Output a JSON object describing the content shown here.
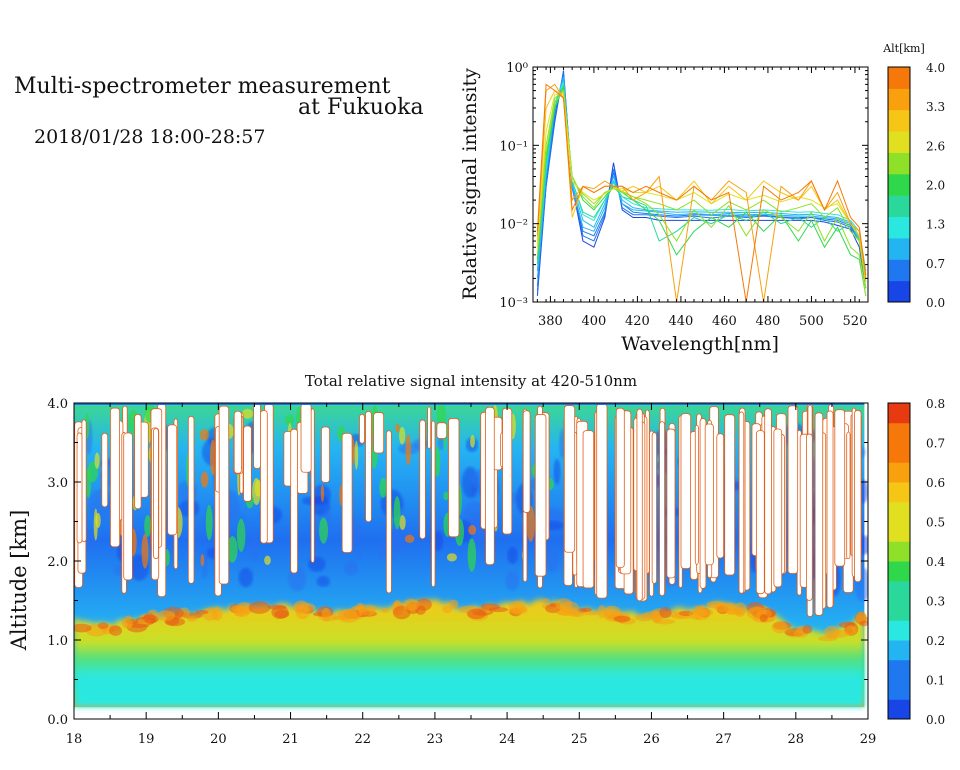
{
  "header": {
    "title_line1": "Multi-spectrometer measurement",
    "title_line2": "at Fukuoka",
    "subtitle": "2018/01/28 18:00-28:57"
  },
  "colors": {
    "altitude_scale": [
      "#1846e6",
      "#1f78f0",
      "#25b4f2",
      "#2ae8e0",
      "#29d89a",
      "#2fd84a",
      "#8ee028",
      "#e0e020",
      "#f6c616",
      "#f8a00e",
      "#f6780a"
    ],
    "intensity_scale": [
      "#1846e6",
      "#1f78f0",
      "#25b4f2",
      "#2ae8e0",
      "#29d89a",
      "#2fd84a",
      "#8ee028",
      "#e0e020",
      "#f6c616",
      "#f8a00e",
      "#f6780a",
      "#e83a10"
    ]
  },
  "chart_data": [
    {
      "type": "line",
      "xlabel": "Wavelength[nm]",
      "ylabel": "Relative signal intensity",
      "xlim": [
        372,
        526
      ],
      "ylim": [
        0.001,
        1
      ],
      "yscale": "log",
      "x_ticks": [
        380,
        400,
        420,
        440,
        460,
        480,
        500,
        520
      ],
      "y_ticks": [
        {
          "value": 1,
          "label": "10⁰"
        },
        {
          "value": 0.1,
          "label": "10⁻¹"
        },
        {
          "value": 0.01,
          "label": "10⁻²"
        },
        {
          "value": 0.001,
          "label": "10⁻³"
        }
      ],
      "colorbar": {
        "label": "Alt[km]",
        "range": [
          0,
          4
        ],
        "tick_labels": [
          "4.0",
          "3.3",
          "2.6",
          "2.0",
          "1.3",
          "0.7",
          "0.0"
        ]
      },
      "x": [
        374,
        378,
        382,
        386,
        390,
        395,
        400,
        405,
        409,
        413,
        418,
        424,
        430,
        438,
        446,
        454,
        462,
        470,
        478,
        486,
        494,
        500,
        506,
        512,
        518,
        522,
        525
      ],
      "series": [
        {
          "alt": 0.0,
          "values": [
            0.0012,
            0.03,
            0.2,
            0.9,
            0.03,
            0.006,
            0.005,
            0.012,
            0.06,
            0.015,
            0.012,
            0.012,
            0.011,
            0.011,
            0.011,
            0.011,
            0.011,
            0.011,
            0.011,
            0.011,
            0.011,
            0.011,
            0.0105,
            0.0095,
            0.0085,
            0.005,
            0.0015
          ]
        },
        {
          "alt": 0.2,
          "values": [
            0.0014,
            0.035,
            0.25,
            0.85,
            0.03,
            0.007,
            0.006,
            0.013,
            0.05,
            0.016,
            0.013,
            0.013,
            0.0125,
            0.012,
            0.0125,
            0.0118,
            0.0125,
            0.012,
            0.0125,
            0.012,
            0.0115,
            0.012,
            0.011,
            0.0105,
            0.009,
            0.006,
            0.0018
          ]
        },
        {
          "alt": 0.4,
          "values": [
            0.0016,
            0.03,
            0.22,
            0.8,
            0.028,
            0.008,
            0.007,
            0.014,
            0.045,
            0.018,
            0.014,
            0.0135,
            0.013,
            0.0125,
            0.013,
            0.0128,
            0.0128,
            0.0125,
            0.0128,
            0.0122,
            0.012,
            0.012,
            0.0115,
            0.011,
            0.0095,
            0.006,
            0.002
          ]
        },
        {
          "alt": 0.6,
          "values": [
            0.002,
            0.04,
            0.3,
            0.75,
            0.03,
            0.009,
            0.008,
            0.016,
            0.04,
            0.018,
            0.015,
            0.0145,
            0.014,
            0.013,
            0.0135,
            0.013,
            0.0135,
            0.013,
            0.0132,
            0.0128,
            0.0125,
            0.0125,
            0.012,
            0.0115,
            0.01,
            0.0065,
            0.002
          ]
        },
        {
          "alt": 0.9,
          "values": [
            0.0025,
            0.05,
            0.3,
            0.7,
            0.032,
            0.011,
            0.009,
            0.018,
            0.035,
            0.02,
            0.016,
            0.015,
            0.0145,
            0.014,
            0.0142,
            0.014,
            0.014,
            0.0138,
            0.014,
            0.0135,
            0.013,
            0.0132,
            0.0125,
            0.012,
            0.0105,
            0.007,
            0.0022
          ]
        },
        {
          "alt": 1.3,
          "values": [
            0.003,
            0.05,
            0.35,
            0.65,
            0.035,
            0.013,
            0.011,
            0.02,
            0.033,
            0.022,
            0.018,
            0.016,
            0.0155,
            0.015,
            0.015,
            0.0148,
            0.0152,
            0.0145,
            0.015,
            0.0145,
            0.014,
            0.0142,
            0.0135,
            0.013,
            0.011,
            0.008,
            0.0025
          ]
        },
        {
          "alt": 1.6,
          "values": [
            0.003,
            0.06,
            0.3,
            0.6,
            0.035,
            0.014,
            0.012,
            0.02,
            0.03,
            0.022,
            0.02,
            0.017,
            0.006,
            0.008,
            0.012,
            0.01,
            0.013,
            0.011,
            0.014,
            0.01,
            0.012,
            0.009,
            0.012,
            0.008,
            0.01,
            0.006,
            0.002
          ]
        },
        {
          "alt": 1.9,
          "values": [
            0.0035,
            0.07,
            0.3,
            0.55,
            0.04,
            0.02,
            0.015,
            0.022,
            0.03,
            0.025,
            0.02,
            0.015,
            0.011,
            0.004,
            0.008,
            0.012,
            0.009,
            0.014,
            0.008,
            0.013,
            0.006,
            0.011,
            0.005,
            0.009,
            0.004,
            0.0035,
            0.0012
          ]
        },
        {
          "alt": 2.2,
          "values": [
            0.004,
            0.08,
            0.35,
            0.5,
            0.04,
            0.022,
            0.016,
            0.025,
            0.028,
            0.025,
            0.022,
            0.018,
            0.013,
            0.006,
            0.015,
            0.009,
            0.017,
            0.007,
            0.015,
            0.012,
            0.008,
            0.014,
            0.006,
            0.012,
            0.005,
            0.004,
            0.0012
          ]
        },
        {
          "alt": 2.5,
          "values": [
            0.005,
            0.1,
            0.4,
            0.5,
            0.035,
            0.024,
            0.018,
            0.025,
            0.028,
            0.026,
            0.022,
            0.02,
            0.018,
            0.015,
            0.02,
            0.013,
            0.019,
            0.015,
            0.02,
            0.014,
            0.016,
            0.018,
            0.012,
            0.016,
            0.008,
            0.006,
            0.0015
          ]
        },
        {
          "alt": 2.8,
          "values": [
            0.005,
            0.15,
            0.45,
            0.45,
            0.035,
            0.025,
            0.02,
            0.024,
            0.028,
            0.028,
            0.025,
            0.025,
            0.023,
            0.02,
            0.025,
            0.018,
            0.024,
            0.02,
            0.023,
            0.019,
            0.022,
            0.02,
            0.016,
            0.018,
            0.01,
            0.007,
            0.0018
          ]
        },
        {
          "alt": 3.2,
          "values": [
            0.006,
            0.3,
            0.5,
            0.45,
            0.012,
            0.03,
            0.025,
            0.03,
            0.03,
            0.026,
            0.03,
            0.025,
            0.03,
            0.02,
            0.035,
            0.018,
            0.03,
            0.02,
            0.035,
            0.025,
            0.02,
            0.03,
            0.015,
            0.02,
            0.01,
            0.008,
            0.002
          ]
        },
        {
          "alt": 3.6,
          "values": [
            0.007,
            0.5,
            0.6,
            0.4,
            0.02,
            0.03,
            0.028,
            0.035,
            0.03,
            0.03,
            0.02,
            0.025,
            0.04,
            0.001,
            0.03,
            0.02,
            0.035,
            0.025,
            0.001,
            0.03,
            0.02,
            0.035,
            0.015,
            0.025,
            0.01,
            0.008,
            0.002
          ]
        },
        {
          "alt": 4.0,
          "values": [
            0.008,
            0.6,
            0.5,
            0.4,
            0.015,
            0.03,
            0.025,
            0.03,
            0.03,
            0.03,
            0.025,
            0.03,
            0.025,
            0.02,
            0.03,
            0.02,
            0.025,
            0.001,
            0.03,
            0.02,
            0.025,
            0.035,
            0.015,
            0.035,
            0.012,
            0.009,
            0.0022
          ]
        }
      ]
    },
    {
      "type": "heatmap",
      "title": "Total relative signal intensity at 420-510nm",
      "xlabel": "",
      "ylabel": "Altitude [km]",
      "xlim": [
        18,
        29
      ],
      "ylim": [
        0,
        4
      ],
      "x_ticks": [
        18,
        19,
        20,
        21,
        22,
        23,
        24,
        25,
        26,
        27,
        28,
        29
      ],
      "y_ticks": [
        "0.0",
        "1.0",
        "2.0",
        "3.0",
        "4.0"
      ],
      "data_xrange": [
        18.0,
        28.95
      ],
      "data_yrange": [
        0.15,
        4.0
      ],
      "colorbar": {
        "range": [
          0,
          0.8
        ],
        "tick_labels": [
          "0.8",
          "0.7",
          "0.6",
          "0.5",
          "0.4",
          "0.3",
          "0.2",
          "0.1",
          "0.0"
        ]
      },
      "cloud_base_km": [
        {
          "t": 18.0,
          "h": 1.25
        },
        {
          "t": 18.5,
          "h": 1.2
        },
        {
          "t": 19.0,
          "h": 1.3
        },
        {
          "t": 19.5,
          "h": 1.35
        },
        {
          "t": 20.0,
          "h": 1.4
        },
        {
          "t": 20.5,
          "h": 1.4
        },
        {
          "t": 21.0,
          "h": 1.45
        },
        {
          "t": 21.5,
          "h": 1.35
        },
        {
          "t": 22.0,
          "h": 1.4
        },
        {
          "t": 22.5,
          "h": 1.45
        },
        {
          "t": 23.0,
          "h": 1.5
        },
        {
          "t": 23.5,
          "h": 1.4
        },
        {
          "t": 24.0,
          "h": 1.45
        },
        {
          "t": 24.5,
          "h": 1.5
        },
        {
          "t": 25.0,
          "h": 1.4
        },
        {
          "t": 25.5,
          "h": 1.35
        },
        {
          "t": 26.0,
          "h": 1.3
        },
        {
          "t": 26.5,
          "h": 1.4
        },
        {
          "t": 27.0,
          "h": 1.45
        },
        {
          "t": 27.5,
          "h": 1.4
        },
        {
          "t": 28.0,
          "h": 1.15
        },
        {
          "t": 28.5,
          "h": 1.1
        },
        {
          "t": 28.95,
          "h": 1.3
        }
      ],
      "clear_fraction_by_time": [
        {
          "t": 18.0,
          "f": 0.45
        },
        {
          "t": 19.0,
          "f": 0.35
        },
        {
          "t": 20.0,
          "f": 0.3
        },
        {
          "t": 21.0,
          "f": 0.25
        },
        {
          "t": 22.0,
          "f": 0.15
        },
        {
          "t": 23.0,
          "f": 0.15
        },
        {
          "t": 24.0,
          "f": 0.3
        },
        {
          "t": 24.5,
          "f": 0.55
        },
        {
          "t": 25.0,
          "f": 0.8
        },
        {
          "t": 26.0,
          "f": 0.85
        },
        {
          "t": 27.0,
          "f": 0.8
        },
        {
          "t": 28.0,
          "f": 0.75
        },
        {
          "t": 28.95,
          "f": 0.7
        }
      ]
    }
  ]
}
